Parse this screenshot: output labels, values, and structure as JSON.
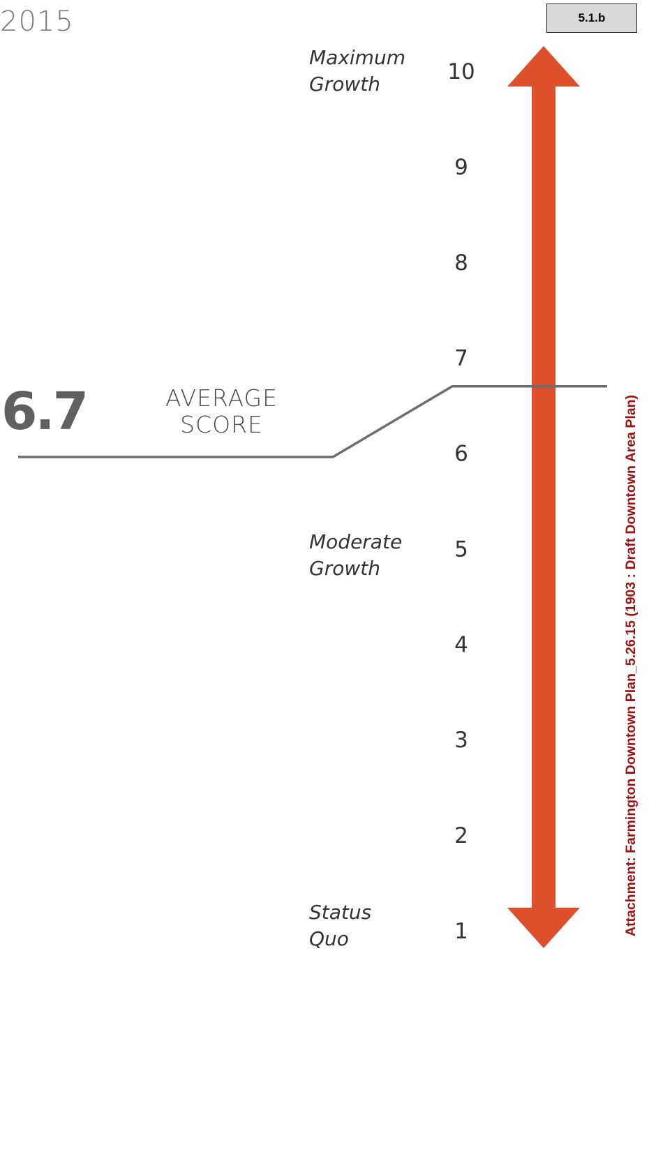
{
  "header": {
    "year_text": "2015"
  },
  "badge": {
    "label": "5.1.b"
  },
  "side_attachment": {
    "text": "Attachment: Farmington Downtown Plan_5.26.15  (1903 : Draft Downtown Area Plan)",
    "color": "#9b1010"
  },
  "average": {
    "value_text": "6.7",
    "label_line1": "AVERAGE",
    "label_line2": "SCORE"
  },
  "anchors": {
    "max": {
      "line1": "Maximum",
      "line2": "Growth"
    },
    "moderate": {
      "line1": "Moderate",
      "line2": "Growth"
    },
    "status": {
      "line1": "Status",
      "line2": "Quo"
    }
  },
  "colors": {
    "arrow": "#de4f2c",
    "score_line": "#6e6e6e",
    "badge_fill": "#d9d9d9"
  },
  "chart_data": {
    "type": "scale",
    "ticks": [
      1,
      2,
      3,
      4,
      5,
      6,
      7,
      8,
      9,
      10
    ],
    "ylim": [
      1,
      10
    ],
    "marker_value": 6.7,
    "marker_label": "AVERAGE SCORE"
  }
}
